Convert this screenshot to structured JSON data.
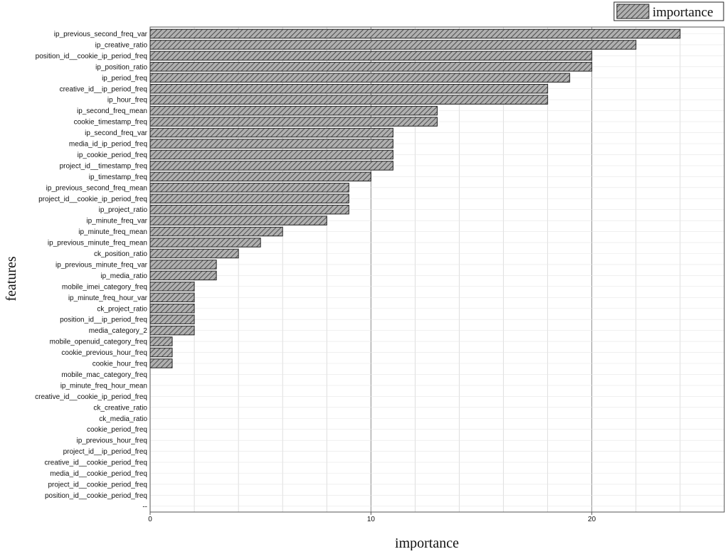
{
  "chart_data": {
    "type": "bar",
    "orientation": "horizontal",
    "xlabel": "importance",
    "ylabel": "features",
    "xlim": [
      0,
      26
    ],
    "x_ticks": [
      0,
      10,
      20
    ],
    "grid": true,
    "legend_position": "top-right",
    "series": [
      {
        "name": "importance",
        "pattern": "diagonal-hatch",
        "fill_color": "#b0b0b0",
        "edge_color": "#222222"
      }
    ],
    "categories": [
      "ip_previous_second_freq_var",
      "ip_creative_ratio",
      "position_id__cookie_ip_period_freq",
      "ip_position_ratio",
      "ip_period_freq",
      "creative_id__ip_period_freq",
      "ip_hour_freq",
      "ip_second_freq_mean",
      "cookie_timestamp_freq",
      "ip_second_freq_var",
      "media_id_ip_period_freq",
      "ip_cookie_period_freq",
      "project_id__timestamp_freq",
      "ip_timestamp_freq",
      "ip_previous_second_freq_mean",
      "project_id__cookie_ip_period_freq",
      "ip_project_ratio",
      "ip_minute_freq_var",
      "ip_minute_freq_mean",
      "ip_previous_minute_freq_mean",
      "ck_position_ratio",
      "ip_previous_minute_freq_var",
      "ip_media_ratio",
      "mobile_imei_category_freq",
      "ip_minute_freq_hour_var",
      "ck_project_ratio",
      "position_id__ip_period_freq",
      "media_category_2",
      "mobile_openuid_category_freq",
      "cookie_previous_hour_freq",
      "cookie_hour_freq",
      "mobile_mac_category_freq",
      "ip_minute_freq_hour_mean",
      "creative_id__cookie_ip_period_freq",
      "ck_creative_ratio",
      "ck_media_ratio",
      "cookie_period_freq",
      "ip_previous_hour_freq",
      "project_id__ip_period_freq",
      "creative_id__cookie_period_freq",
      "media_id__cookie_period_freq",
      "project_id__cookie_period_freq",
      "position_id__cookie_period_freq",
      "--"
    ],
    "values": [
      24,
      22,
      20,
      20,
      19,
      18,
      18,
      13,
      13,
      11,
      11,
      11,
      11,
      10,
      9,
      9,
      9,
      8,
      6,
      5,
      4,
      3,
      3,
      2,
      2,
      2,
      2,
      2,
      1,
      1,
      1,
      0,
      0,
      0,
      0,
      0,
      0,
      0,
      0,
      0,
      0,
      0,
      0,
      0
    ]
  }
}
